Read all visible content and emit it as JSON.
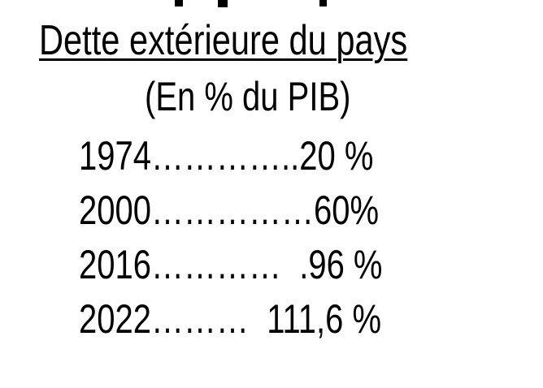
{
  "page": {
    "background_color": "#ffffff",
    "text_color": "#000000"
  },
  "slide": {
    "title": "Dette extérieure du pays",
    "subtitle": "(En % du PIB)",
    "rows": [
      {
        "year": "1974",
        "value": "20 %",
        "text": "1974…………..20 %"
      },
      {
        "year": "2000",
        "value": "60%",
        "text": "2000……………60%"
      },
      {
        "year": "2016",
        "value": ".96 %",
        "text": "2016…………  .96 %"
      },
      {
        "year": "2022",
        "value": "111,6 %",
        "text": "2022………  111,6 %"
      }
    ]
  },
  "chart_data": {
    "type": "table",
    "title": "Dette extérieure du pays",
    "subtitle": "(En % du PIB)",
    "categories": [
      "1974",
      "2000",
      "2016",
      "2022"
    ],
    "values": [
      20,
      60,
      96,
      111.6
    ],
    "unit": "% du PIB"
  }
}
